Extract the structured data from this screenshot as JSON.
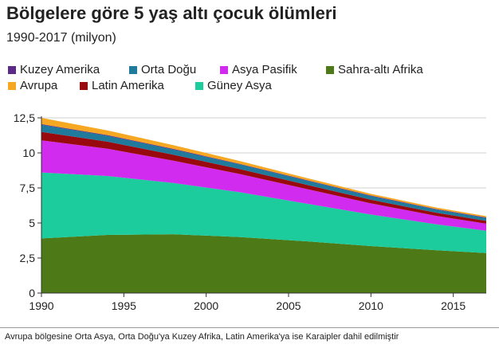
{
  "header": {
    "title": "Bölgelere göre 5 yaş altı çocuk ölümleri",
    "subtitle": "1990-2017 (milyon)"
  },
  "legend": {
    "items": [
      {
        "label": "Kuzey Amerika",
        "color": "#5b2a86"
      },
      {
        "label": "Orta Doğu",
        "color": "#1f7a9c"
      },
      {
        "label": "Asya Pasifik",
        "color": "#d12bf0"
      },
      {
        "label": "Sahra-altı Afrika",
        "color": "#4d7a16"
      },
      {
        "label": "Avrupa",
        "color": "#f7a823"
      },
      {
        "label": "Latin Amerika",
        "color": "#980a0d"
      },
      {
        "label": "Güney Asya",
        "color": "#1ccc9c"
      }
    ]
  },
  "footnote": "Avrupa bölgesine Orta Asya, Orta Doğu'ya Kuzey Afrika, Latin Amerika'ya ise Karaipler dahil edilmiştir",
  "chart_data": {
    "type": "area",
    "stacked": true,
    "x": [
      1990,
      1994,
      1998,
      2002,
      2006,
      2010,
      2014,
      2017
    ],
    "series": [
      {
        "name": "Sahra-altı Afrika",
        "color": "#4d7a16",
        "values": [
          3.9,
          4.15,
          4.2,
          4.0,
          3.7,
          3.35,
          3.05,
          2.85
        ]
      },
      {
        "name": "Güney Asya",
        "color": "#1ccc9c",
        "values": [
          4.7,
          4.2,
          3.65,
          3.2,
          2.7,
          2.25,
          1.85,
          1.6
        ]
      },
      {
        "name": "Asya Pasifik",
        "color": "#d12bf0",
        "values": [
          2.3,
          1.95,
          1.6,
          1.3,
          1.05,
          0.8,
          0.6,
          0.5
        ]
      },
      {
        "name": "Latin Amerika",
        "color": "#980a0d",
        "values": [
          0.6,
          0.5,
          0.42,
          0.36,
          0.3,
          0.26,
          0.22,
          0.2
        ]
      },
      {
        "name": "Orta Doğu",
        "color": "#1f7a9c",
        "values": [
          0.5,
          0.42,
          0.37,
          0.33,
          0.3,
          0.26,
          0.23,
          0.21
        ]
      },
      {
        "name": "Kuzey Amerika",
        "color": "#5b2a86",
        "values": [
          0.05,
          0.05,
          0.05,
          0.04,
          0.04,
          0.04,
          0.04,
          0.04
        ]
      },
      {
        "name": "Avrupa",
        "color": "#f7a823",
        "values": [
          0.45,
          0.33,
          0.26,
          0.2,
          0.15,
          0.12,
          0.1,
          0.09
        ]
      }
    ],
    "xlim": [
      1990,
      2017
    ],
    "ylim": [
      0,
      12.5
    ],
    "yticks": [
      0,
      2.5,
      5,
      7.5,
      10,
      12.5
    ],
    "ytick_labels": [
      "0",
      "2,5",
      "5",
      "7,5",
      "10",
      "12,5"
    ],
    "xticks": [
      1990,
      1995,
      2000,
      2005,
      2010,
      2015
    ],
    "xtick_labels": [
      "1990",
      "1995",
      "2000",
      "2005",
      "2010",
      "2015"
    ],
    "grid": true,
    "legend_position": "top-left"
  }
}
